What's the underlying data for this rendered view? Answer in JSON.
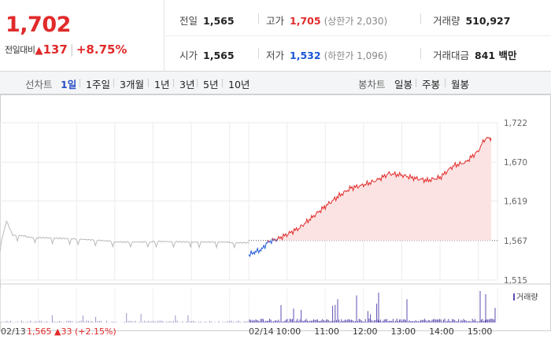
{
  "header": {
    "current_price": "1,702",
    "change_label": "전일대비",
    "change_arrow": "▲",
    "change_amount": "137",
    "change_pct": "+8.75%",
    "prev_close_label": "전일",
    "prev_close": "1,565",
    "high_label": "고가",
    "high": "1,705",
    "upper_limit": "(상한가 2,030)",
    "volume_label": "거래량",
    "volume": "510,927",
    "open_label": "시가",
    "open": "1,565",
    "low_label": "저가",
    "low": "1,532",
    "lower_limit": "(하한가 1,096)",
    "trade_value_label": "거래대금",
    "trade_value": "841 백만"
  },
  "tabs": {
    "line_label": "선차트",
    "line_periods": [
      "1일",
      "1주일",
      "3개월",
      "1년",
      "3년",
      "5년",
      "10년"
    ],
    "active_period": "1일",
    "candle_label": "봉차트",
    "candle_periods": [
      "일봉",
      "주봉",
      "월봉"
    ]
  },
  "colors": {
    "up": "#e12a2a",
    "down": "#1a55d6",
    "prev_day_line": "#b9b9b9",
    "up_fill": "#fbe3e3",
    "volume_bar": "#5b4fb0"
  },
  "chart_data": {
    "type": "line",
    "ylim": [
      1515,
      1722
    ],
    "y_ticks": [
      "1,722",
      "1,670",
      "1,619",
      "1,567",
      "1,515"
    ],
    "reference_price": 1567,
    "x_ticks": [
      "02/13",
      "02/14",
      "10:00",
      "11:00",
      "12:00",
      "13:00",
      "14:00",
      "15:00"
    ],
    "prev_day_caption": "02/13",
    "prev_day_close": "1,565",
    "prev_day_change_arrow": "▲",
    "prev_day_change": "33",
    "prev_day_change_pct": "(+2.15%)",
    "volume_legend": "거래량",
    "series": [
      {
        "name": "02/13",
        "x": [
          "09:00",
          "09:10",
          "09:20",
          "09:40",
          "10:00",
          "11:00",
          "12:00",
          "13:00",
          "14:00",
          "15:00",
          "15:30"
        ],
        "values": [
          1560,
          1593,
          1574,
          1573,
          1571,
          1569,
          1566,
          1566,
          1565,
          1565,
          1565
        ]
      },
      {
        "name": "02/14",
        "x": [
          "09:00",
          "09:10",
          "09:20",
          "09:30",
          "09:45",
          "10:00",
          "10:20",
          "10:40",
          "11:00",
          "11:20",
          "11:40",
          "12:00",
          "12:20",
          "12:40",
          "13:00",
          "13:20",
          "13:40",
          "14:00",
          "14:20",
          "14:40",
          "15:00",
          "15:10",
          "15:20"
        ],
        "values": [
          1548,
          1552,
          1555,
          1565,
          1569,
          1575,
          1584,
          1598,
          1612,
          1625,
          1636,
          1640,
          1646,
          1655,
          1653,
          1649,
          1646,
          1650,
          1665,
          1670,
          1685,
          1701,
          1702
        ]
      }
    ]
  }
}
